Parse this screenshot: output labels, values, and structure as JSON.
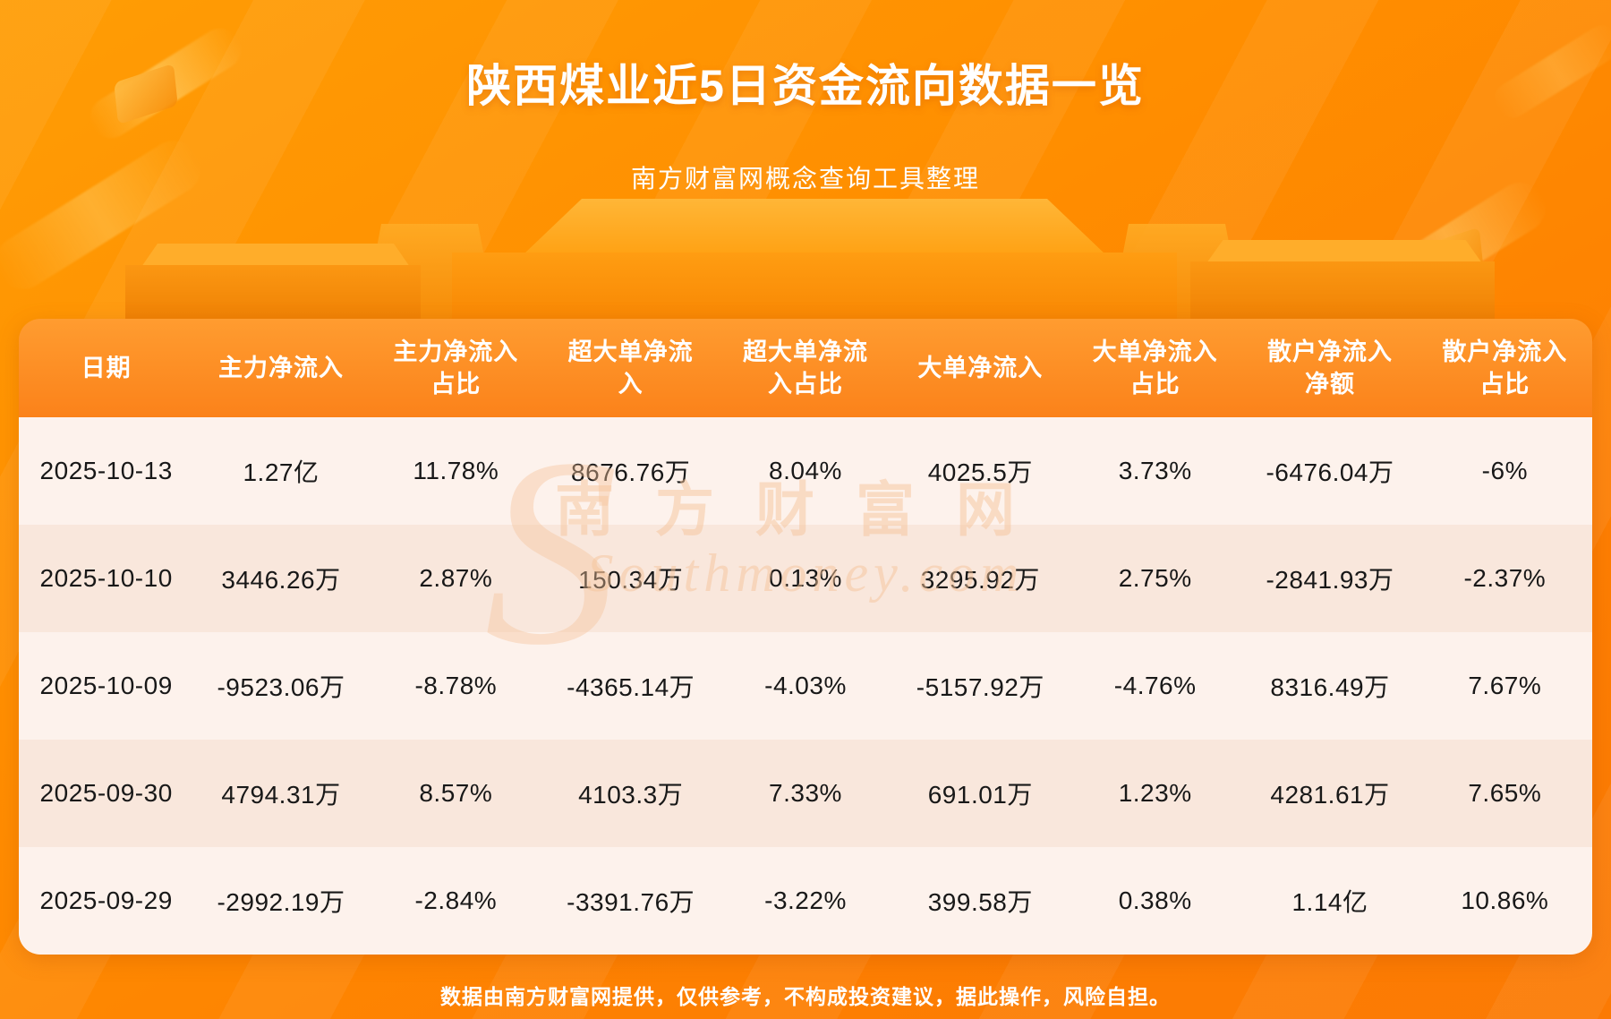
{
  "page": {
    "title": "陕西煤业近5日资金流向数据一览",
    "subtitle": "南方财富网概念查询工具整理",
    "footer": "数据由南方财富网提供，仅供参考，不构成投资建议，据此操作，风险自担。",
    "watermark_letter": "S",
    "watermark_cn": "南方财富网",
    "watermark_en": "Southmoney.com"
  },
  "colors": {
    "background_orange": "#ff8e00",
    "header_orange": "#fb821a",
    "row_odd": "#fdf2ec",
    "row_even": "#f9e7dc",
    "text_dark": "#181818",
    "text_white": "#ffffff"
  },
  "chart_data": {
    "type": "table",
    "title": "陕西煤业近5日资金流向数据一览",
    "columns": [
      "日期",
      "主力净流入",
      "主力净流入\n占比",
      "超大单净流\n入",
      "超大单净流\n入占比",
      "大单净流入",
      "大单净流入\n占比",
      "散户净流入\n净额",
      "散户净流入\n占比"
    ],
    "rows": [
      [
        "2025-10-13",
        "1.27亿",
        "11.78%",
        "8676.76万",
        "8.04%",
        "4025.5万",
        "3.73%",
        "-6476.04万",
        "-6%"
      ],
      [
        "2025-10-10",
        "3446.26万",
        "2.87%",
        "150.34万",
        "0.13%",
        "3295.92万",
        "2.75%",
        "-2841.93万",
        "-2.37%"
      ],
      [
        "2025-10-09",
        "-9523.06万",
        "-8.78%",
        "-4365.14万",
        "-4.03%",
        "-5157.92万",
        "-4.76%",
        "8316.49万",
        "7.67%"
      ],
      [
        "2025-09-30",
        "4794.31万",
        "8.57%",
        "4103.3万",
        "7.33%",
        "691.01万",
        "1.23%",
        "4281.61万",
        "7.65%"
      ],
      [
        "2025-09-29",
        "-2992.19万",
        "-2.84%",
        "-3391.76万",
        "-3.22%",
        "399.58万",
        "0.38%",
        "1.14亿",
        "10.86%"
      ]
    ]
  }
}
